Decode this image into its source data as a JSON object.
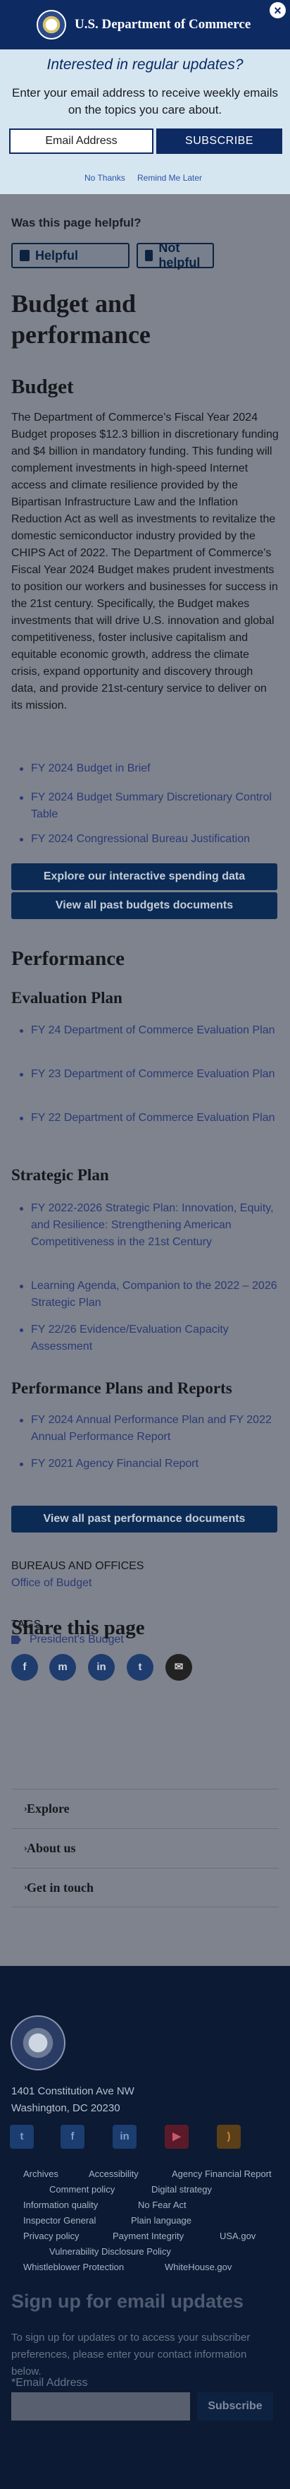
{
  "header": {
    "title": "U.S. Department of Commerce",
    "close": "×"
  },
  "promo": {
    "title": "Interested in regular updates?",
    "text": "Enter your email address to receive weekly emails on the topics you care about.",
    "email_placeholder": "Email Address",
    "subscribe": "SUBSCRIBE",
    "no_thanks": "No Thanks",
    "remind": "Remind Me Later"
  },
  "feedback": {
    "question": "Was this page helpful?",
    "helpful": "Helpful",
    "not_helpful": "Not helpful"
  },
  "page": {
    "title": "Budget and performance"
  },
  "budget": {
    "heading": "Budget",
    "text": "The Department of Commerce’s Fiscal Year 2024 Budget proposes $12.3 billion in discretionary funding and $4 billion in mandatory funding. This funding will complement investments in high-speed Internet access and climate resilience provided by the Bipartisan Infrastructure Law and the Inflation Reduction Act as well as investments to revitalize the domestic semiconductor industry provided by the CHIPS Act of 2022. The Department of Commerce’s Fiscal Year 2024 Budget makes prudent investments to position our workers and businesses for success in the 21st century. Specifically, the Budget makes investments that will drive U.S. innovation and global competitiveness, foster inclusive capitalism and equitable economic growth, address the climate crisis, expand opportunity and discovery through data, and provide 21st-century service to deliver on its mission.",
    "links": [
      "FY 2024 Budget in Brief",
      "FY 2024 Budget Summary Discretionary Control Table",
      "FY 2024 Congressional Bureau Justification"
    ],
    "btn_spending": "Explore our interactive spending data",
    "btn_past": "View all past budgets documents"
  },
  "performance": {
    "heading": "Performance",
    "eval_heading": "Evaluation Plan",
    "eval_links": [
      "FY 24 Department of Commerce Evaluation Plan",
      "FY 23 Department of Commerce Evaluation Plan",
      "FY 22 Department of Commerce Evaluation Plan"
    ],
    "strat_heading": "Strategic Plan",
    "strat_links": [
      "FY 2022-2026 Strategic Plan: Innovation, Equity, and Resilience: Strengthening American Competitiveness in the 21st Century",
      "Learning Agenda, Companion to the 2022 – 2026 Strategic Plan",
      "FY 22/26 Evidence/Evaluation Capacity Assessment"
    ],
    "plans_heading": "Performance Plans and Reports",
    "plans_links": [
      "FY 2024 Annual Performance Plan and FY 2022 Annual Performance Report",
      "FY 2021 Agency Financial Report"
    ],
    "btn_past": "View all past performance documents"
  },
  "meta": {
    "bureaus_label": "BUREAUS AND OFFICES",
    "bureau": "Office of Budget",
    "tags_label": "TAGS",
    "tag": "President's Budget"
  },
  "share": {
    "heading": "Share this page",
    "icons": [
      "facebook-icon",
      "messenger-icon",
      "linkedin-icon",
      "twitter-icon",
      "email-icon"
    ]
  },
  "accordion": [
    "Explore",
    "About us",
    "Get in touch"
  ],
  "footer": {
    "address1": "1401 Constitution Ave NW",
    "address2": "Washington, DC 20230",
    "social": [
      "twitter-icon",
      "facebook-icon",
      "linkedin-icon",
      "youtube-icon",
      "rss-icon"
    ],
    "links": [
      "Archives",
      "Accessibility",
      "Agency Financial Report",
      "Comment policy",
      "Digital strategy",
      "Information quality",
      "No Fear Act",
      "Inspector General",
      "Plain language",
      "Privacy policy",
      "Payment Integrity",
      "USA.gov",
      "Vulnerability Disclosure Policy",
      "Whistleblower Protection",
      "WhiteHouse.gov"
    ],
    "signup_title": "Sign up for email updates",
    "signup_text": "To sign up for updates or to access your subscriber preferences, please enter your contact information below.",
    "email_label": "*Email Address",
    "subscribe": "Subscribe"
  }
}
